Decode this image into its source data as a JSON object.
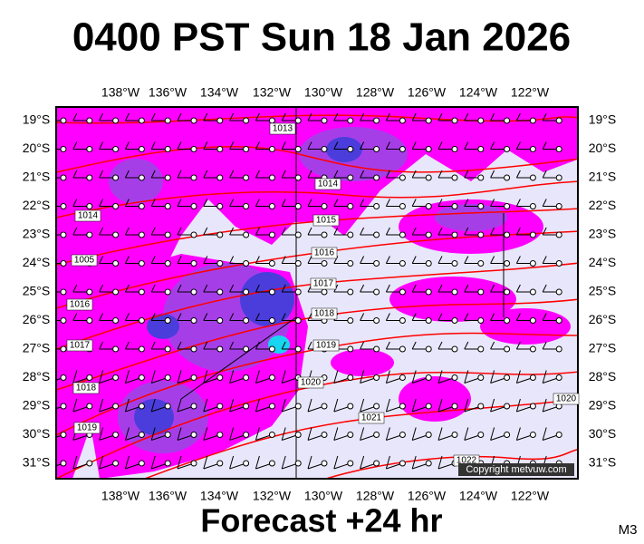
{
  "header": {
    "title": "0400 PST Sun 18 Jan 2026"
  },
  "map": {
    "longitude_labels": [
      "138°W",
      "136°W",
      "134°W",
      "132°W",
      "130°W",
      "128°W",
      "126°W",
      "124°W",
      "122°W"
    ],
    "latitude_labels": [
      "19°S",
      "20°S",
      "21°S",
      "22°S",
      "23°S",
      "24°S",
      "25°S",
      "26°S",
      "27°S",
      "28°S",
      "29°S",
      "30°S",
      "31°S"
    ],
    "isobar_labels": [
      "1013",
      "1014",
      "1014",
      "1015",
      "1016",
      "1005",
      "1017",
      "1016",
      "1018",
      "1017",
      "1019",
      "1018",
      "1020",
      "1019",
      "1021",
      "1020",
      "1022"
    ],
    "copyright": "Copyright metvuw.com"
  },
  "footer": {
    "forecast": "Forecast +24 hr",
    "model": "M3"
  }
}
